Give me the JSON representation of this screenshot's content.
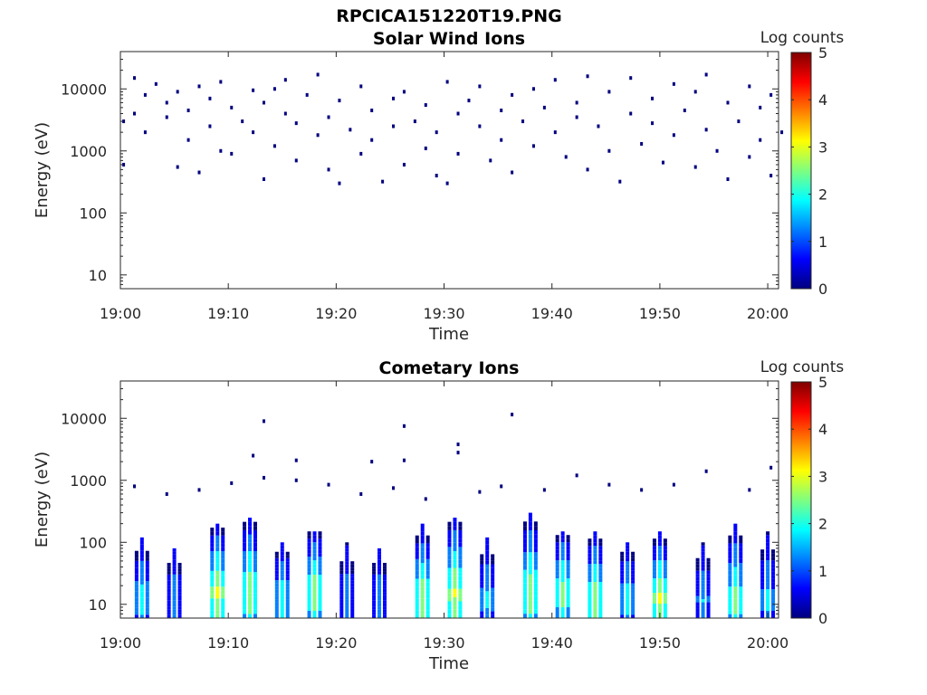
{
  "figure_title": "RPCICA151220T19.PNG",
  "colorbar_label": "Log counts",
  "colormap": [
    "#00007f",
    "#0000ff",
    "#007fff",
    "#00ffff",
    "#7fff7f",
    "#ffff00",
    "#ff7f00",
    "#ff0000",
    "#7f0000"
  ],
  "chart_data": [
    {
      "type": "heatmap",
      "title": "Solar Wind Ions",
      "xlabel": "Time",
      "ylabel": "Energy (eV)",
      "x_range": [
        "19:00",
        "20:01"
      ],
      "x_ticks": [
        "19:00",
        "19:10",
        "19:20",
        "19:30",
        "19:40",
        "19:50",
        "20:00"
      ],
      "y_scale": "log",
      "y_range": [
        6,
        40000
      ],
      "y_ticks": [
        10,
        100,
        1000,
        10000
      ],
      "y_tick_labels": [
        "10",
        "100",
        "1000",
        "10000"
      ],
      "colorbar": {
        "label": "Log counts",
        "range": [
          0,
          5
        ],
        "ticks": [
          "0",
          "1",
          "2",
          "3",
          "4",
          "5"
        ]
      },
      "description_of_values": "sparse single counts (log counts ~0-0.5) scattered between ~300 eV and ~17000 eV throughout the interval",
      "points": [
        [
          "19:00",
          600,
          0.2
        ],
        [
          "19:00",
          3000,
          0.2
        ],
        [
          "19:01",
          4000,
          0.2
        ],
        [
          "19:01",
          15000,
          0.2
        ],
        [
          "19:02",
          2000,
          0.2
        ],
        [
          "19:02",
          8000,
          0.2
        ],
        [
          "19:03",
          12000,
          0.2
        ],
        [
          "19:04",
          6000,
          0.2
        ],
        [
          "19:04",
          3500,
          0.2
        ],
        [
          "19:05",
          550,
          0.2
        ],
        [
          "19:05",
          9000,
          0.2
        ],
        [
          "19:06",
          1500,
          0.2
        ],
        [
          "19:06",
          4500,
          0.2
        ],
        [
          "19:07",
          450,
          0.2
        ],
        [
          "19:07",
          11000,
          0.2
        ],
        [
          "19:08",
          2500,
          0.2
        ],
        [
          "19:08",
          7000,
          0.2
        ],
        [
          "19:09",
          1000,
          0.2
        ],
        [
          "19:09",
          13000,
          0.2
        ],
        [
          "19:10",
          5000,
          0.2
        ],
        [
          "19:10",
          900,
          0.2
        ],
        [
          "19:11",
          3000,
          0.2
        ],
        [
          "19:12",
          9500,
          0.2
        ],
        [
          "19:12",
          2000,
          0.2
        ],
        [
          "19:13",
          350,
          0.2
        ],
        [
          "19:13",
          6000,
          0.2
        ],
        [
          "19:14",
          1200,
          0.2
        ],
        [
          "19:14",
          10000,
          0.2
        ],
        [
          "19:15",
          4000,
          0.2
        ],
        [
          "19:15",
          14000,
          0.2
        ],
        [
          "19:16",
          700,
          0.2
        ],
        [
          "19:16",
          2800,
          0.2
        ],
        [
          "19:17",
          8000,
          0.2
        ],
        [
          "19:18",
          17000,
          0.2
        ],
        [
          "19:18",
          1800,
          0.2
        ],
        [
          "19:19",
          500,
          0.2
        ],
        [
          "19:19",
          3500,
          0.2
        ],
        [
          "19:20",
          300,
          0.2
        ],
        [
          "19:20",
          6500,
          0.2
        ],
        [
          "19:21",
          2200,
          0.2
        ],
        [
          "19:22",
          900,
          0.2
        ],
        [
          "19:22",
          11000,
          0.2
        ],
        [
          "19:23",
          1500,
          0.2
        ],
        [
          "19:23",
          4500,
          0.2
        ],
        [
          "19:24",
          320,
          0.2
        ],
        [
          "19:25",
          7000,
          0.2
        ],
        [
          "19:25",
          2500,
          0.2
        ],
        [
          "19:26",
          600,
          0.2
        ],
        [
          "19:26",
          9000,
          0.2
        ],
        [
          "19:27",
          3000,
          0.2
        ],
        [
          "19:28",
          1100,
          0.2
        ],
        [
          "19:28",
          5500,
          0.2
        ],
        [
          "19:29",
          400,
          0.2
        ],
        [
          "19:29",
          2000,
          0.2
        ],
        [
          "19:30",
          13000,
          0.2
        ],
        [
          "19:30",
          300,
          0.2
        ],
        [
          "19:31",
          4000,
          0.2
        ],
        [
          "19:31",
          900,
          0.2
        ],
        [
          "19:32",
          6500,
          0.2
        ],
        [
          "19:33",
          2500,
          0.2
        ],
        [
          "19:33",
          11000,
          0.2
        ],
        [
          "19:34",
          700,
          0.2
        ],
        [
          "19:35",
          4500,
          0.2
        ],
        [
          "19:35",
          1500,
          0.2
        ],
        [
          "19:36",
          8000,
          0.2
        ],
        [
          "19:36",
          450,
          0.2
        ],
        [
          "19:37",
          3000,
          0.2
        ],
        [
          "19:38",
          10000,
          0.2
        ],
        [
          "19:38",
          1200,
          0.2
        ],
        [
          "19:39",
          5000,
          0.2
        ],
        [
          "19:40",
          2000,
          0.2
        ],
        [
          "19:40",
          14000,
          0.2
        ],
        [
          "19:41",
          800,
          0.2
        ],
        [
          "19:42",
          6000,
          0.2
        ],
        [
          "19:42",
          3500,
          0.2
        ],
        [
          "19:43",
          500,
          0.2
        ],
        [
          "19:43",
          16000,
          0.2
        ],
        [
          "19:44",
          2500,
          0.2
        ],
        [
          "19:45",
          9000,
          0.2
        ],
        [
          "19:45",
          1000,
          0.2
        ],
        [
          "19:46",
          320,
          0.2
        ],
        [
          "19:47",
          4000,
          0.2
        ],
        [
          "19:47",
          15000,
          0.2
        ],
        [
          "19:48",
          1300,
          0.2
        ],
        [
          "19:49",
          7000,
          0.2
        ],
        [
          "19:49",
          2800,
          0.2
        ],
        [
          "19:50",
          650,
          0.2
        ],
        [
          "19:51",
          12000,
          0.2
        ],
        [
          "19:51",
          1800,
          0.2
        ],
        [
          "19:52",
          4500,
          0.2
        ],
        [
          "19:53",
          550,
          0.2
        ],
        [
          "19:53",
          9000,
          0.2
        ],
        [
          "19:54",
          17000,
          0.2
        ],
        [
          "19:54",
          2200,
          0.2
        ],
        [
          "19:55",
          1000,
          0.2
        ],
        [
          "19:56",
          6000,
          0.2
        ],
        [
          "19:56",
          350,
          0.2
        ],
        [
          "19:57",
          3000,
          0.2
        ],
        [
          "19:58",
          11000,
          0.2
        ],
        [
          "19:58",
          800,
          0.2
        ],
        [
          "19:59",
          5000,
          0.2
        ],
        [
          "19:59",
          1500,
          0.2
        ],
        [
          "20:00",
          400,
          0.2
        ],
        [
          "20:00",
          8000,
          0.2
        ],
        [
          "20:01",
          2000,
          0.2
        ]
      ]
    },
    {
      "type": "heatmap",
      "title": "Cometary Ions",
      "xlabel": "Time",
      "ylabel": "Energy (eV)",
      "x_range": [
        "19:00",
        "20:01"
      ],
      "x_ticks": [
        "19:00",
        "19:10",
        "19:20",
        "19:30",
        "19:40",
        "19:50",
        "20:00"
      ],
      "y_scale": "log",
      "y_range": [
        6,
        40000
      ],
      "y_ticks": [
        10,
        100,
        1000,
        10000
      ],
      "y_tick_labels": [
        "10",
        "100",
        "1000",
        "10000"
      ],
      "colorbar": {
        "label": "Log counts",
        "range": [
          0,
          5
        ],
        "ticks": [
          "0",
          "1",
          "2",
          "3",
          "4",
          "5"
        ]
      },
      "description_of_values": "periodic bursts of low-energy ions (6-300 eV) with peak log counts ~2.5-3; sparse single counts up to ~12000 eV",
      "bursts": [
        {
          "time": "19:02",
          "peak_energy": 12,
          "top_energy": 120,
          "peak_log_counts": 2.0
        },
        {
          "time": "19:05",
          "peak_energy": 12,
          "top_energy": 80,
          "peak_log_counts": 1.5
        },
        {
          "time": "19:09",
          "peak_energy": 15,
          "top_energy": 200,
          "peak_log_counts": 3.0
        },
        {
          "time": "19:12",
          "peak_energy": 15,
          "top_energy": 250,
          "peak_log_counts": 2.8
        },
        {
          "time": "19:15",
          "peak_energy": 12,
          "top_energy": 100,
          "peak_log_counts": 2.2
        },
        {
          "time": "19:18",
          "peak_energy": 15,
          "top_energy": 150,
          "peak_log_counts": 2.8
        },
        {
          "time": "19:21",
          "peak_energy": 12,
          "top_energy": 100,
          "peak_log_counts": 1.5
        },
        {
          "time": "19:24",
          "peak_energy": 12,
          "top_energy": 80,
          "peak_log_counts": 1.5
        },
        {
          "time": "19:28",
          "peak_energy": 12,
          "top_energy": 200,
          "peak_log_counts": 2.8
        },
        {
          "time": "19:31",
          "peak_energy": 15,
          "top_energy": 250,
          "peak_log_counts": 3.0
        },
        {
          "time": "19:34",
          "peak_energy": 12,
          "top_energy": 120,
          "peak_log_counts": 1.8
        },
        {
          "time": "19:38",
          "peak_energy": 15,
          "top_energy": 300,
          "peak_log_counts": 2.8
        },
        {
          "time": "19:41",
          "peak_energy": 15,
          "top_energy": 150,
          "peak_log_counts": 2.6
        },
        {
          "time": "19:44",
          "peak_energy": 12,
          "top_energy": 150,
          "peak_log_counts": 2.8
        },
        {
          "time": "19:47",
          "peak_energy": 12,
          "top_energy": 100,
          "peak_log_counts": 2.0
        },
        {
          "time": "19:50",
          "peak_energy": 12,
          "top_energy": 150,
          "peak_log_counts": 3.0
        },
        {
          "time": "19:54",
          "peak_energy": 12,
          "top_energy": 100,
          "peak_log_counts": 1.6
        },
        {
          "time": "19:57",
          "peak_energy": 12,
          "top_energy": 200,
          "peak_log_counts": 2.6
        },
        {
          "time": "20:00",
          "peak_energy": 12,
          "top_energy": 150,
          "peak_log_counts": 1.8
        }
      ],
      "sparse_points": [
        [
          "19:13",
          9000,
          0.2
        ],
        [
          "19:26",
          7500,
          0.2
        ],
        [
          "19:31",
          3800,
          0.2
        ],
        [
          "19:36",
          11500,
          0.2
        ],
        [
          "19:12",
          2500,
          0.2
        ],
        [
          "19:16",
          2100,
          0.2
        ],
        [
          "19:23",
          2000,
          0.2
        ],
        [
          "19:26",
          2100,
          0.2
        ],
        [
          "19:31",
          2800,
          0.2
        ],
        [
          "19:42",
          1200,
          0.2
        ],
        [
          "19:54",
          1400,
          0.2
        ],
        [
          "20:00",
          1600,
          0.2
        ],
        [
          "19:01",
          800,
          0.2
        ],
        [
          "19:04",
          600,
          0.2
        ],
        [
          "19:07",
          700,
          0.2
        ],
        [
          "19:10",
          900,
          0.2
        ],
        [
          "19:13",
          1100,
          0.2
        ],
        [
          "19:16",
          1000,
          0.2
        ],
        [
          "19:19",
          850,
          0.2
        ],
        [
          "19:22",
          600,
          0.2
        ],
        [
          "19:25",
          750,
          0.2
        ],
        [
          "19:28",
          500,
          0.2
        ],
        [
          "19:33",
          650,
          0.2
        ],
        [
          "19:35",
          800,
          0.2
        ],
        [
          "19:39",
          700,
          0.2
        ],
        [
          "19:45",
          850,
          0.2
        ],
        [
          "19:48",
          700,
          0.2
        ],
        [
          "19:51",
          850,
          0.2
        ],
        [
          "19:58",
          700,
          0.2
        ]
      ]
    }
  ]
}
